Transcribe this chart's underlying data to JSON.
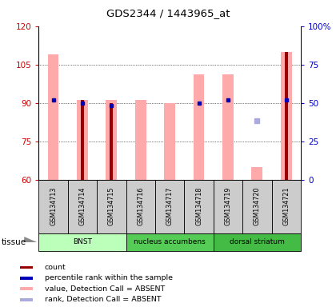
{
  "title": "GDS2344 / 1443965_at",
  "samples": [
    "GSM134713",
    "GSM134714",
    "GSM134715",
    "GSM134716",
    "GSM134717",
    "GSM134718",
    "GSM134719",
    "GSM134720",
    "GSM134721"
  ],
  "ylim_left": [
    60,
    120
  ],
  "ylim_right": [
    0,
    100
  ],
  "yticks_left": [
    60,
    75,
    90,
    105,
    120
  ],
  "yticks_right": [
    0,
    25,
    50,
    75,
    100
  ],
  "yticklabels_right": [
    "0",
    "25",
    "50",
    "75",
    "100%"
  ],
  "pink_bars": [
    109,
    91,
    91,
    91,
    90,
    101,
    101,
    65,
    110
  ],
  "dark_red_bars": [
    null,
    91,
    90,
    null,
    null,
    null,
    null,
    null,
    110
  ],
  "blue_dots": [
    91,
    90,
    89,
    null,
    null,
    90,
    91,
    null,
    91
  ],
  "light_blue_dots": [
    null,
    null,
    null,
    null,
    null,
    null,
    null,
    83,
    null
  ],
  "tissues": [
    {
      "label": "BNST",
      "start": 0,
      "end": 3,
      "color": "#bbffbb"
    },
    {
      "label": "nucleus accumbens",
      "start": 3,
      "end": 6,
      "color": "#55cc55"
    },
    {
      "label": "dorsal striatum",
      "start": 6,
      "end": 9,
      "color": "#44bb44"
    }
  ],
  "pink_bar_color": "#ffaaaa",
  "dark_red_color": "#990000",
  "blue_dot_color": "#0000bb",
  "light_blue_color": "#aaaadd",
  "left_tick_color": "#cc0000",
  "right_tick_color": "#0000cc",
  "grid_color": "#333333",
  "sample_bg_color": "#cccccc",
  "tissue_label": "tissue"
}
